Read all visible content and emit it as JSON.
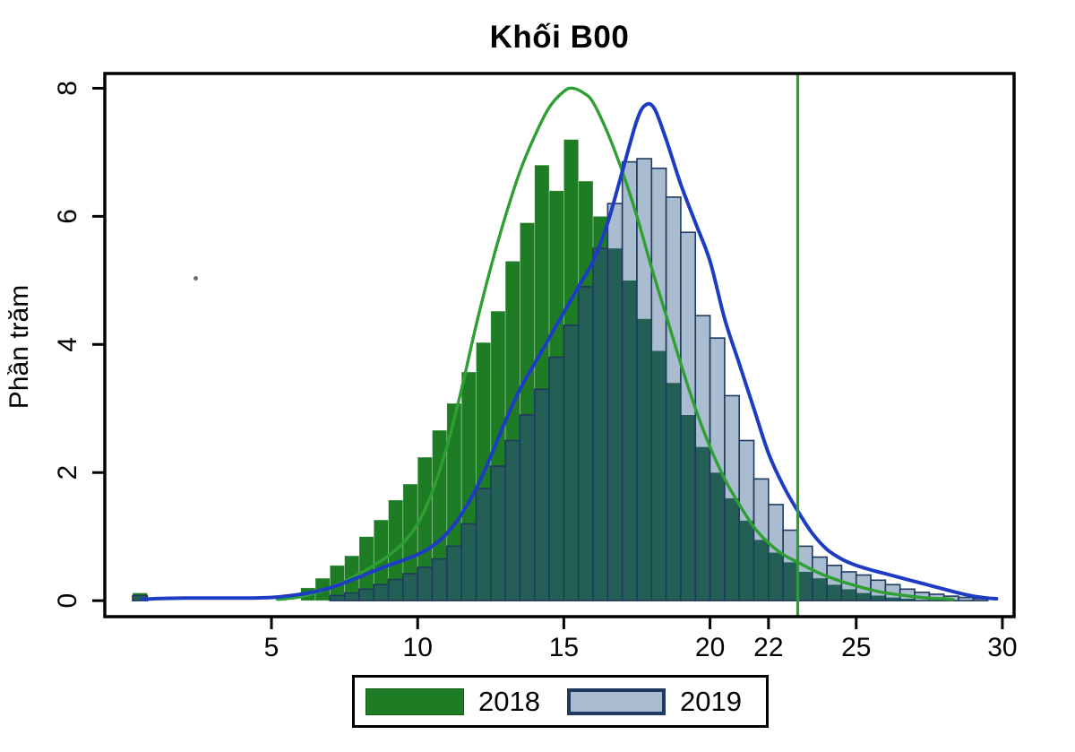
{
  "title": "Khối B00",
  "y_axis": {
    "label": "Phần trăm",
    "ticks": [
      0,
      2,
      4,
      6,
      8
    ]
  },
  "x_axis": {
    "ticks": [
      5,
      10,
      15,
      20,
      22,
      25,
      30
    ]
  },
  "legend": {
    "items": [
      {
        "label": "2018",
        "swatch_fill": "#1e7d24",
        "swatch_border": "#145a14"
      },
      {
        "label": "2019",
        "swatch_fill": "#a9bcd0",
        "swatch_border": "#1f3a5f"
      }
    ]
  },
  "colors": {
    "hist_2018_fill": "#1e7d24",
    "hist_2018_edge": "rgba(255,255,255,0.45)",
    "hist_2019_fill": "#a9bcd0",
    "hist_2019_edge": "#1f3a5f",
    "hist_overlap_fill": "#245f55",
    "kde_2018": "#2e9f32",
    "kde_2019": "#1e3cc3",
    "reference_line": "#28a028",
    "frame": "#000000"
  },
  "chart_data": {
    "type": "bar",
    "subtype": "overlaid-histograms-with-kde",
    "title": "Khối B00",
    "xlabel": "",
    "ylabel": "Phần trăm",
    "xlim": [
      -0.7,
      30.4
    ],
    "ylim": [
      -0.25,
      8.23
    ],
    "x_ticks": [
      5,
      10,
      15,
      20,
      22,
      25,
      30
    ],
    "y_ticks": [
      0,
      2,
      4,
      6,
      8
    ],
    "bin_width": 0.5,
    "reference_line_x": 23,
    "legend_position": "bottom-center",
    "grid": false,
    "series": [
      {
        "name": "2018",
        "type": "histogram",
        "unit": "percent",
        "bins": [
          [
            0.25,
            0.12
          ],
          [
            6.0,
            0.2
          ],
          [
            6.5,
            0.35
          ],
          [
            7.0,
            0.55
          ],
          [
            7.5,
            0.7
          ],
          [
            8.0,
            1.0
          ],
          [
            8.5,
            1.26
          ],
          [
            9.0,
            1.57
          ],
          [
            9.5,
            1.82
          ],
          [
            10.0,
            2.24
          ],
          [
            10.5,
            2.66
          ],
          [
            11.0,
            3.08
          ],
          [
            11.5,
            3.57
          ],
          [
            12.0,
            4.03
          ],
          [
            12.5,
            4.52
          ],
          [
            13.0,
            5.3
          ],
          [
            13.5,
            5.9
          ],
          [
            14.0,
            6.8
          ],
          [
            14.5,
            6.4
          ],
          [
            15.0,
            7.2
          ],
          [
            15.5,
            6.55
          ],
          [
            16.0,
            6.0
          ],
          [
            16.5,
            5.5
          ],
          [
            17.0,
            5.0
          ],
          [
            17.5,
            4.4
          ],
          [
            18.0,
            3.9
          ],
          [
            18.5,
            3.4
          ],
          [
            19.0,
            2.9
          ],
          [
            19.5,
            2.4
          ],
          [
            20.0,
            2.0
          ],
          [
            20.5,
            1.6
          ],
          [
            21.0,
            1.25
          ],
          [
            21.5,
            0.95
          ],
          [
            22.0,
            0.75
          ],
          [
            22.5,
            0.6
          ],
          [
            23.0,
            0.45
          ],
          [
            23.5,
            0.35
          ],
          [
            24.0,
            0.25
          ],
          [
            24.5,
            0.18
          ],
          [
            25.0,
            0.12
          ],
          [
            25.5,
            0.08
          ],
          [
            26.0,
            0.05
          ],
          [
            26.5,
            0.03
          ]
        ]
      },
      {
        "name": "2019",
        "type": "histogram",
        "unit": "percent",
        "bins": [
          [
            0.25,
            0.08
          ],
          [
            7.0,
            0.08
          ],
          [
            7.5,
            0.12
          ],
          [
            8.0,
            0.18
          ],
          [
            8.5,
            0.25
          ],
          [
            9.0,
            0.33
          ],
          [
            9.5,
            0.42
          ],
          [
            10.0,
            0.52
          ],
          [
            10.5,
            0.65
          ],
          [
            11.0,
            0.85
          ],
          [
            11.5,
            1.2
          ],
          [
            12.0,
            1.75
          ],
          [
            12.5,
            2.1
          ],
          [
            13.0,
            2.5
          ],
          [
            13.5,
            2.9
          ],
          [
            14.0,
            3.3
          ],
          [
            14.5,
            3.8
          ],
          [
            15.0,
            4.3
          ],
          [
            15.5,
            4.9
          ],
          [
            16.0,
            5.5
          ],
          [
            16.5,
            6.2
          ],
          [
            17.0,
            6.85
          ],
          [
            17.5,
            6.9
          ],
          [
            18.0,
            6.75
          ],
          [
            18.5,
            6.3
          ],
          [
            19.0,
            5.75
          ],
          [
            19.5,
            4.45
          ],
          [
            20.0,
            4.1
          ],
          [
            20.5,
            3.2
          ],
          [
            21.0,
            2.5
          ],
          [
            21.5,
            1.9
          ],
          [
            22.0,
            1.5
          ],
          [
            22.5,
            1.1
          ],
          [
            23.0,
            0.85
          ],
          [
            23.5,
            0.68
          ],
          [
            24.0,
            0.55
          ],
          [
            24.5,
            0.45
          ],
          [
            25.0,
            0.4
          ],
          [
            25.5,
            0.32
          ],
          [
            26.0,
            0.25
          ],
          [
            26.5,
            0.18
          ],
          [
            27.0,
            0.13
          ],
          [
            27.5,
            0.1
          ],
          [
            28.0,
            0.07
          ],
          [
            28.5,
            0.05
          ],
          [
            29.0,
            0.03
          ]
        ]
      },
      {
        "name": "2018 kernel density",
        "type": "line",
        "points": [
          [
            5.2,
            0.02
          ],
          [
            5.5,
            0.03
          ],
          [
            6,
            0.06
          ],
          [
            6.5,
            0.12
          ],
          [
            7,
            0.2
          ],
          [
            7.5,
            0.3
          ],
          [
            8,
            0.42
          ],
          [
            8.5,
            0.55
          ],
          [
            9,
            0.7
          ],
          [
            9.5,
            0.9
          ],
          [
            10,
            1.2
          ],
          [
            10.5,
            1.7
          ],
          [
            11,
            2.4
          ],
          [
            11.5,
            3.3
          ],
          [
            12,
            4.3
          ],
          [
            12.5,
            5.2
          ],
          [
            13,
            6.0
          ],
          [
            13.5,
            6.7
          ],
          [
            14,
            7.25
          ],
          [
            14.5,
            7.7
          ],
          [
            15,
            7.95
          ],
          [
            15.3,
            8.0
          ],
          [
            15.7,
            7.92
          ],
          [
            16,
            7.78
          ],
          [
            16.5,
            7.3
          ],
          [
            17,
            6.7
          ],
          [
            17.5,
            6.0
          ],
          [
            18,
            5.2
          ],
          [
            18.5,
            4.45
          ],
          [
            19,
            3.7
          ],
          [
            19.5,
            3.0
          ],
          [
            20,
            2.4
          ],
          [
            20.5,
            1.9
          ],
          [
            21,
            1.5
          ],
          [
            21.5,
            1.15
          ],
          [
            22,
            0.9
          ],
          [
            22.5,
            0.72
          ],
          [
            23,
            0.6
          ],
          [
            23.5,
            0.48
          ],
          [
            24,
            0.38
          ],
          [
            24.5,
            0.3
          ],
          [
            25,
            0.23
          ],
          [
            25.5,
            0.17
          ],
          [
            26,
            0.12
          ],
          [
            26.5,
            0.09
          ],
          [
            27,
            0.06
          ],
          [
            27.5,
            0.04
          ],
          [
            28,
            0.03
          ],
          [
            28.3,
            0.02
          ]
        ]
      },
      {
        "name": "2019 kernel density",
        "type": "line",
        "points": [
          [
            0.6,
            0.02
          ],
          [
            1,
            0.03
          ],
          [
            2,
            0.04
          ],
          [
            3,
            0.04
          ],
          [
            4,
            0.04
          ],
          [
            5,
            0.05
          ],
          [
            5.5,
            0.07
          ],
          [
            6,
            0.1
          ],
          [
            6.5,
            0.14
          ],
          [
            7,
            0.2
          ],
          [
            7.5,
            0.28
          ],
          [
            8,
            0.37
          ],
          [
            8.5,
            0.46
          ],
          [
            9,
            0.55
          ],
          [
            9.5,
            0.63
          ],
          [
            10,
            0.72
          ],
          [
            10.5,
            0.85
          ],
          [
            11,
            1.05
          ],
          [
            11.5,
            1.35
          ],
          [
            12,
            1.75
          ],
          [
            12.5,
            2.25
          ],
          [
            13,
            2.8
          ],
          [
            13.5,
            3.3
          ],
          [
            14,
            3.7
          ],
          [
            14.5,
            4.1
          ],
          [
            15,
            4.5
          ],
          [
            15.5,
            4.9
          ],
          [
            16,
            5.3
          ],
          [
            16.5,
            5.9
          ],
          [
            17,
            6.7
          ],
          [
            17.5,
            7.5
          ],
          [
            17.8,
            7.74
          ],
          [
            18.1,
            7.68
          ],
          [
            18.5,
            7.2
          ],
          [
            19,
            6.5
          ],
          [
            19.5,
            5.9
          ],
          [
            20,
            5.3
          ],
          [
            20.5,
            4.4
          ],
          [
            21,
            3.7
          ],
          [
            21.5,
            3.0
          ],
          [
            22,
            2.3
          ],
          [
            22.5,
            1.8
          ],
          [
            23,
            1.4
          ],
          [
            23.5,
            1.05
          ],
          [
            24,
            0.8
          ],
          [
            24.5,
            0.65
          ],
          [
            25,
            0.55
          ],
          [
            25.5,
            0.48
          ],
          [
            26,
            0.42
          ],
          [
            26.5,
            0.36
          ],
          [
            27,
            0.3
          ],
          [
            27.5,
            0.24
          ],
          [
            28,
            0.18
          ],
          [
            28.5,
            0.12
          ],
          [
            29,
            0.07
          ],
          [
            29.5,
            0.04
          ],
          [
            29.8,
            0.03
          ]
        ]
      }
    ]
  }
}
